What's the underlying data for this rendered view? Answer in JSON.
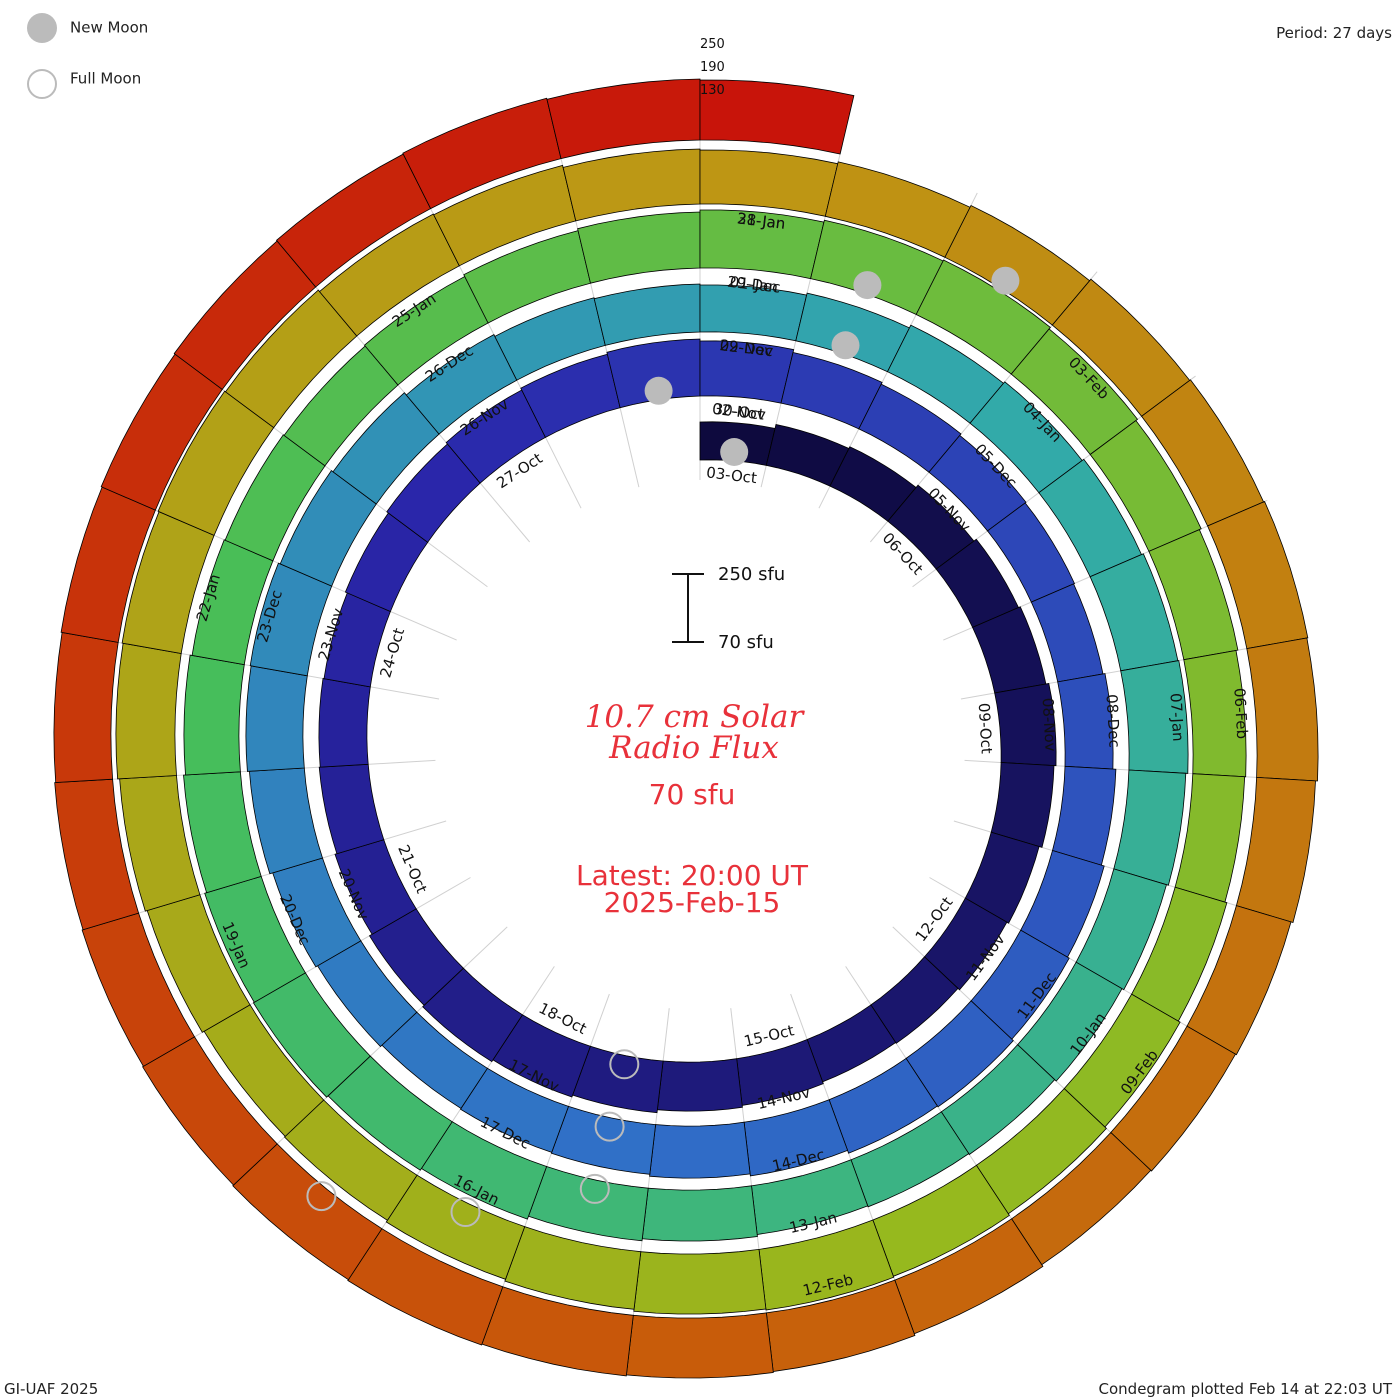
{
  "header": {
    "period_label": "Period: 27 days"
  },
  "legend": {
    "new_moon": "New Moon",
    "full_moon": "Full Moon"
  },
  "footer": {
    "credit": "GI-UAF 2025",
    "plotted": "Condegram plotted Feb 14 at 22:03 UT"
  },
  "center": {
    "title_line1": "10.7 cm Solar",
    "title_line2": "Radio Flux",
    "current_value": "70 sfu",
    "latest_line1": "Latest: 20:00 UT",
    "latest_line2": "2025-Feb-15",
    "scale_top": "250 sfu",
    "scale_bottom": "70 sfu"
  },
  "chart_data": {
    "type": "condegram-spiral",
    "title": "10.7 cm Solar Radio Flux",
    "period_days": 27,
    "units": "sfu",
    "scale_min": 70,
    "scale_max": 250,
    "grid_values": [
      "250",
      "190",
      "130"
    ],
    "rotations": [
      {
        "color": "#0e0a3e",
        "labels": [
          "03-Oct",
          "06-Oct",
          "09-Oct",
          "12-Oct",
          "15-Oct",
          "18-Oct",
          "21-Oct",
          "24-Oct",
          "27-Oct",
          "30-Oct"
        ]
      },
      {
        "color": "#2b27a8",
        "labels": [
          "02-Nov",
          "05-Nov",
          "08-Nov",
          "11-Nov",
          "14-Nov",
          "17-Nov",
          "20-Nov",
          "23-Nov",
          "26-Nov",
          "29-Nov"
        ]
      },
      {
        "color": "#2f8fb6",
        "labels": [
          "02-Dec",
          "05-Dec",
          "08-Dec",
          "11-Dec",
          "14-Dec",
          "17-Dec",
          "20-Dec",
          "23-Dec",
          "26-Dec",
          "29-Dec"
        ]
      },
      {
        "color": "#3fbf6a",
        "labels": [
          "01-Jan",
          "04-Jan",
          "07-Jan",
          "10-Jan",
          "13-Jan",
          "16-Jan",
          "19-Jan",
          "22-Jan",
          "25-Jan",
          "28-Jan"
        ]
      },
      {
        "color": "#a2b81c",
        "labels": [
          "31-Jan",
          "03-Feb",
          "06-Feb",
          "09-Feb",
          "12-Feb"
        ]
      }
    ],
    "flux_segments": [
      130,
      150,
      160,
      175,
      190,
      200,
      215,
      205,
      190,
      180,
      170,
      165,
      175,
      185,
      200,
      210,
      220,
      210,
      195,
      185,
      180,
      175,
      185,
      195,
      205,
      215,
      225,
      215,
      200,
      190,
      180,
      175,
      170,
      180,
      195,
      210,
      220,
      230,
      225,
      210,
      200,
      190,
      185,
      180,
      190,
      200,
      215,
      225,
      230,
      220,
      210,
      195,
      185,
      180,
      175,
      185,
      200,
      210,
      220,
      230,
      235,
      225,
      215,
      205,
      195,
      190,
      185,
      195,
      205,
      220,
      230,
      240,
      235,
      225,
      215,
      205,
      200,
      195,
      200,
      210,
      220,
      230,
      240,
      245,
      235,
      225,
      215,
      205,
      200,
      210,
      220,
      230,
      240,
      245,
      240,
      230,
      220,
      210,
      205,
      215,
      225,
      235,
      240,
      245,
      240,
      230,
      225,
      215,
      210,
      220,
      230,
      240,
      245,
      250,
      245,
      235,
      225,
      220,
      215,
      225,
      235,
      240,
      245,
      250,
      245,
      240,
      235,
      230,
      225,
      230,
      235,
      240,
      245,
      250,
      245,
      240
    ]
  }
}
